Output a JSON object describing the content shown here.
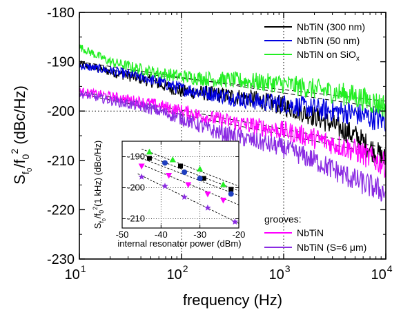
{
  "chart_data": [
    {
      "type": "line",
      "xlabel": "frequency (Hz)",
      "ylabel": "S_f0/f0^2 (dBc/Hz)",
      "xscale": "log",
      "xlim": [
        10,
        10000
      ],
      "ylim": [
        -230,
        -180
      ],
      "x_ticks": [
        {
          "value": 10,
          "mantissa": "10",
          "exp": "1"
        },
        {
          "value": 100,
          "mantissa": "10",
          "exp": "2"
        },
        {
          "value": 1000,
          "mantissa": "10",
          "exp": "3"
        },
        {
          "value": 10000,
          "mantissa": "10",
          "exp": "4"
        }
      ],
      "y_ticks": [
        {
          "value": -180,
          "label": "-180"
        },
        {
          "value": -190,
          "label": "-190"
        },
        {
          "value": -200,
          "label": "-200"
        },
        {
          "value": -210,
          "label": "-210"
        },
        {
          "value": -220,
          "label": "-220"
        },
        {
          "value": -230,
          "label": "-230"
        }
      ],
      "grid": true,
      "grid_style": "dotted at -200 dBc/Hz, 10^2 Hz and 10^3 Hz",
      "legend_upper": {
        "placement": "top-right",
        "entries": [
          {
            "label": "NbTiN (300 nm)",
            "series": 0
          },
          {
            "label": "NbTiN (50 nm)",
            "series": 1
          },
          {
            "label": "NbTiN on SiO",
            "subscript": "x",
            "series": 2
          }
        ]
      },
      "legend_lower": {
        "placement": "bottom-right",
        "title": "grooves:",
        "entries": [
          {
            "label": "NbTiN",
            "series": 3
          },
          {
            "label": "NbTiN (S=6 μm)",
            "series": 4
          }
        ]
      },
      "series": [
        {
          "name": "NbTiN (300 nm)",
          "color": "#000000",
          "x": [
            10,
            20,
            50,
            100,
            200,
            500,
            1000,
            2000,
            5000,
            10000
          ],
          "values": [
            -190.5,
            -192,
            -194,
            -196,
            -196.5,
            -197.5,
            -199,
            -201,
            -205,
            -210
          ]
        },
        {
          "name": "NbTiN (50 nm)",
          "color": "#0000e0",
          "x": [
            10,
            20,
            50,
            100,
            200,
            500,
            1000,
            2000,
            5000,
            10000
          ],
          "values": [
            -190.8,
            -191.8,
            -193.5,
            -195.5,
            -196.5,
            -198,
            -198.5,
            -199.5,
            -200.5,
            -202
          ]
        },
        {
          "name": "NbTiN on SiOx",
          "color": "#22ee22",
          "x": [
            10,
            20,
            50,
            100,
            200,
            500,
            1000,
            2000,
            5000,
            10000
          ],
          "values": [
            -187,
            -190,
            -192,
            -193,
            -193.5,
            -194,
            -194.5,
            -195.5,
            -197,
            -199
          ]
        },
        {
          "name": "NbTiN",
          "color": "#ff00ff",
          "x": [
            10,
            20,
            50,
            100,
            200,
            500,
            1000,
            2000,
            5000,
            10000
          ],
          "values": [
            -196,
            -197,
            -198.5,
            -200,
            -201.5,
            -203,
            -204,
            -205.5,
            -208,
            -211
          ]
        },
        {
          "name": "NbTiN (S=6 μm)",
          "color": "#8a2be2",
          "x": [
            10,
            20,
            50,
            100,
            200,
            500,
            1000,
            2000,
            5000,
            10000
          ],
          "values": [
            -196.5,
            -197.8,
            -199.5,
            -201.5,
            -204,
            -206,
            -207.5,
            -210,
            -214,
            -216.5
          ]
        }
      ],
      "fit_lines": [
        {
          "x": [
            10,
            10000
          ],
          "values": [
            -190,
            -199.5
          ]
        },
        {
          "x": [
            10,
            10000
          ],
          "values": [
            -191,
            -198
          ]
        },
        {
          "x": [
            10,
            10000
          ],
          "values": [
            -196,
            -207.5
          ]
        },
        {
          "x": [
            10,
            10000
          ],
          "values": [
            -196.5,
            -209
          ]
        }
      ]
    },
    {
      "type": "scatter",
      "placement": "inset lower-left",
      "xlabel": "internal resonator power (dBm)",
      "ylabel": "S_f0/f0^2 (1 kHz) (dBc/Hz)",
      "xlim": [
        -50,
        -20
      ],
      "ylim": [
        -213,
        -185
      ],
      "x_ticks": [
        {
          "value": -50,
          "label": "-50"
        },
        {
          "value": -40,
          "label": "-40"
        },
        {
          "value": -30,
          "label": "-30"
        },
        {
          "value": -20,
          "label": "-20"
        }
      ],
      "y_ticks": [
        {
          "value": -190,
          "label": "-190"
        },
        {
          "value": -200,
          "label": "-200"
        },
        {
          "value": -210,
          "label": "-210"
        }
      ],
      "grid": true,
      "series": [
        {
          "name": "NbTiN on SiOx",
          "color": "#22ee22",
          "marker": "triangle-up",
          "x": [
            -43,
            -37,
            -30,
            -24
          ],
          "values": [
            -188.5,
            -191,
            -194,
            -199
          ]
        },
        {
          "name": "NbTiN (300 nm)",
          "color": "#000000",
          "marker": "square",
          "x": [
            -43,
            -35,
            -29,
            -22
          ],
          "values": [
            -190.5,
            -193,
            -197,
            -200.5
          ]
        },
        {
          "name": "NbTiN (50 nm)",
          "color": "#1f3fbf",
          "marker": "circle",
          "x": [
            -39,
            -34,
            -30,
            -22
          ],
          "values": [
            -192,
            -195,
            -197,
            -202
          ]
        },
        {
          "name": "NbTiN",
          "color": "#ff00ff",
          "marker": "triangle-down",
          "x": [
            -45,
            -38,
            -33,
            -28,
            -24
          ],
          "values": [
            -193,
            -196,
            -199,
            -202,
            -204
          ]
        },
        {
          "name": "NbTiN (S=6 μm)",
          "color": "#8a2be2",
          "marker": "star",
          "x": [
            -45,
            -39,
            -34,
            -28,
            -21
          ],
          "values": [
            -196.5,
            -199.5,
            -203,
            -206.5,
            -211
          ]
        }
      ],
      "fit_lines": [
        {
          "x": [
            -45,
            -20
          ],
          "values": [
            -187.5,
            -199.5
          ]
        },
        {
          "x": [
            -45,
            -20
          ],
          "values": [
            -189,
            -201
          ]
        },
        {
          "x": [
            -45,
            -20
          ],
          "values": [
            -190.5,
            -202.5
          ]
        },
        {
          "x": [
            -45,
            -20
          ],
          "values": [
            -192.5,
            -205.5
          ]
        },
        {
          "x": [
            -46,
            -20
          ],
          "values": [
            -195.5,
            -211.5
          ]
        }
      ]
    }
  ]
}
